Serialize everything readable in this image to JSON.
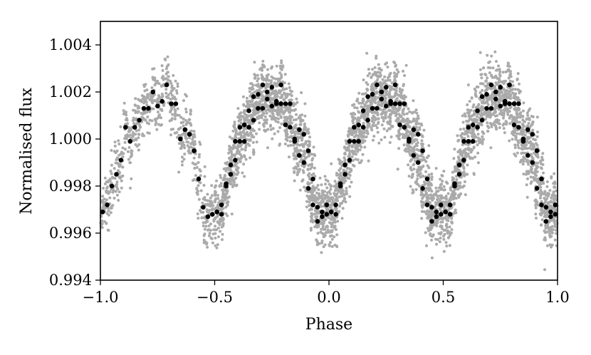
{
  "chart_data": {
    "type": "scatter",
    "title": "",
    "xlabel": "Phase",
    "ylabel": "Normalised flux",
    "xlim": [
      -1.0,
      1.0
    ],
    "ylim": [
      0.994,
      1.005
    ],
    "xticks": [
      -1.0,
      -0.5,
      0.0,
      0.5,
      1.0
    ],
    "xtick_labels": [
      "−1.0",
      "−0.5",
      "0.0",
      "0.5",
      "1.0"
    ],
    "yticks": [
      0.994,
      0.996,
      0.998,
      1.0,
      1.002,
      1.004
    ],
    "ytick_labels": [
      "0.994",
      "0.996",
      "0.998",
      "1.000",
      "1.002",
      "1.004"
    ],
    "grid": false,
    "legend": "none",
    "series": [
      {
        "role": "raw",
        "color": "#aaaaaa",
        "description_of_values": "dense phase-folded scatter, approx. +/-0.0015 around binned curve",
        "points": []
      },
      {
        "role": "binned",
        "color": "#000000",
        "x": [
          -0.99,
          -0.97,
          -0.95,
          -0.93,
          -0.91,
          -0.89,
          -0.87,
          -0.85,
          -0.83,
          -0.81,
          -0.79,
          -0.77,
          -0.75,
          -0.73,
          -0.71,
          -0.69,
          -0.67,
          -0.65,
          -0.63,
          -0.61,
          -0.59,
          -0.57,
          -0.55,
          -0.53,
          -0.51,
          -0.49,
          -0.47,
          -0.45,
          -0.43,
          -0.41,
          -0.39,
          -0.37,
          -0.35,
          -0.33,
          -0.31,
          -0.29,
          -0.27,
          -0.25,
          -0.23,
          -0.21,
          -0.19,
          -0.17,
          -0.15,
          -0.13,
          -0.11,
          -0.09,
          -0.07,
          -0.05,
          -0.03,
          -0.01
        ],
        "y": [
          0.9969,
          0.9972,
          0.998,
          0.9985,
          0.9991,
          1.0005,
          0.9999,
          1.0005,
          1.0008,
          1.0013,
          1.0013,
          1.002,
          1.0014,
          1.0016,
          1.0023,
          1.0015,
          1.0015,
          1.0,
          1.0004,
          1.0002,
          0.9995,
          0.9983,
          0.9971,
          0.9967,
          0.9968,
          0.9969,
          0.9968,
          0.9981,
          0.9989,
          0.9999,
          0.9999,
          1.0006,
          1.0012,
          1.0018,
          1.0019,
          1.0023,
          1.0017,
          1.0022,
          1.0015,
          1.0015,
          1.0006,
          1.0005,
          0.9999,
          0.9993,
          0.999,
          0.9979,
          0.9972,
          0.9965,
          0.9969,
          0.9972
        ],
        "repeats_with_period": 0.5
      }
    ]
  }
}
